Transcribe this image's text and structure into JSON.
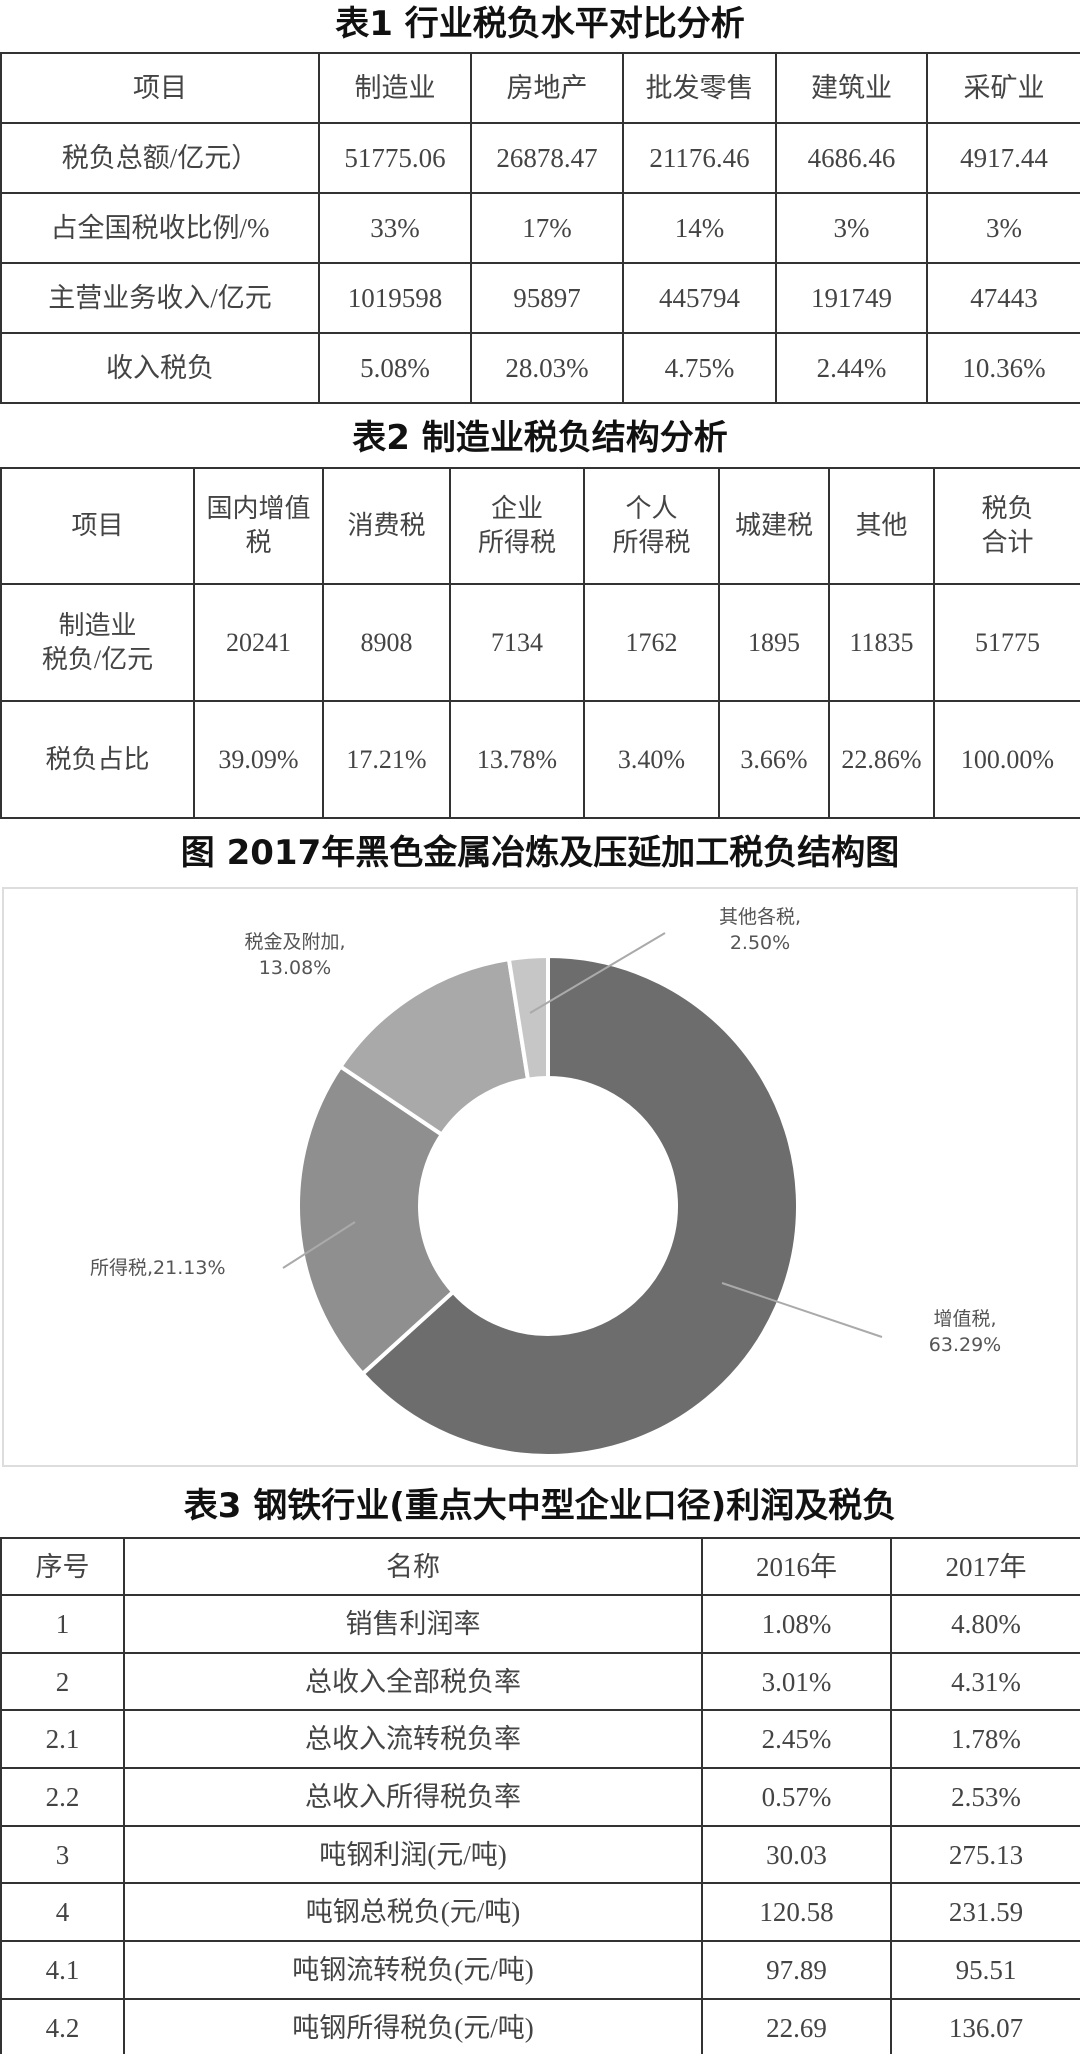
{
  "table1": {
    "title": "表1 行业税负水平对比分析",
    "headers": [
      "项目",
      "制造业",
      "房地产",
      "批发零售",
      "建筑业",
      "采矿业"
    ],
    "rows": [
      [
        "税负总额/亿元）",
        "51775.06",
        "26878.47",
        "21176.46",
        "4686.46",
        "4917.44"
      ],
      [
        "占全国税收比例/%",
        "33%",
        "17%",
        "14%",
        "3%",
        "3%"
      ],
      [
        "主营业务收入/亿元",
        "1019598",
        "95897",
        "445794",
        "191749",
        "47443"
      ],
      [
        "收入税负",
        "5.08%",
        "28.03%",
        "4.75%",
        "2.44%",
        "10.36%"
      ]
    ]
  },
  "table2": {
    "title": "表2 制造业税负结构分析",
    "headers": [
      [
        "项目"
      ],
      [
        "国内增值",
        "税"
      ],
      [
        "消费税"
      ],
      [
        "企业",
        "所得税"
      ],
      [
        "个人",
        "所得税"
      ],
      [
        "城建税"
      ],
      [
        "其他"
      ],
      [
        "税负",
        "合计"
      ]
    ],
    "rows": [
      [
        [
          "制造业",
          "税负/亿元"
        ],
        "20241",
        "8908",
        "7134",
        "1762",
        "1895",
        "11835",
        "51775"
      ],
      [
        [
          "税负占比"
        ],
        "39.09%",
        "17.21%",
        "13.78%",
        "3.40%",
        "3.66%",
        "22.86%",
        "100.00%"
      ]
    ]
  },
  "chart_data": {
    "type": "pie",
    "donut": true,
    "title": "图 2017年黑色金属冶炼及压延加工税负结构图",
    "slices": [
      {
        "name": "增值税",
        "value": 63.29,
        "label_name": "增值税,",
        "label_value": "63.29%",
        "color": "#6d6d6d"
      },
      {
        "name": "所得税",
        "value": 21.13,
        "label_name": "所得税,",
        "label_value": "21.13%",
        "color": "#8f8f8f"
      },
      {
        "name": "税金及附加",
        "value": 13.08,
        "label_name": "税金及附加,",
        "label_value": "13.08%",
        "color": "#a9a9a9"
      },
      {
        "name": "其他各税",
        "value": 2.5,
        "label_name": "其他各税,",
        "label_value": "2.50%",
        "color": "#c6c6c6"
      }
    ]
  },
  "table3": {
    "title": "表3 钢铁行业(重点大中型企业口径)利润及税负",
    "headers": [
      "序号",
      "名称",
      "2016年",
      "2017年"
    ],
    "rows": [
      [
        "1",
        "销售利润率",
        "1.08%",
        "4.80%"
      ],
      [
        "2",
        "总收入全部税负率",
        "3.01%",
        "4.31%"
      ],
      [
        "2.1",
        "总收入流转税负率",
        "2.45%",
        "1.78%"
      ],
      [
        "2.2",
        "总收入所得税负率",
        "0.57%",
        "2.53%"
      ],
      [
        "3",
        "吨钢利润(元/吨)",
        "30.03",
        "275.13"
      ],
      [
        "4",
        "吨钢总税负(元/吨)",
        "120.58",
        "231.59"
      ],
      [
        "4.1",
        "吨钢流转税负(元/吨)",
        "97.89",
        "95.51"
      ],
      [
        "4.2",
        "吨钢所得税负(元/吨)",
        "22.69",
        "136.07"
      ]
    ]
  }
}
